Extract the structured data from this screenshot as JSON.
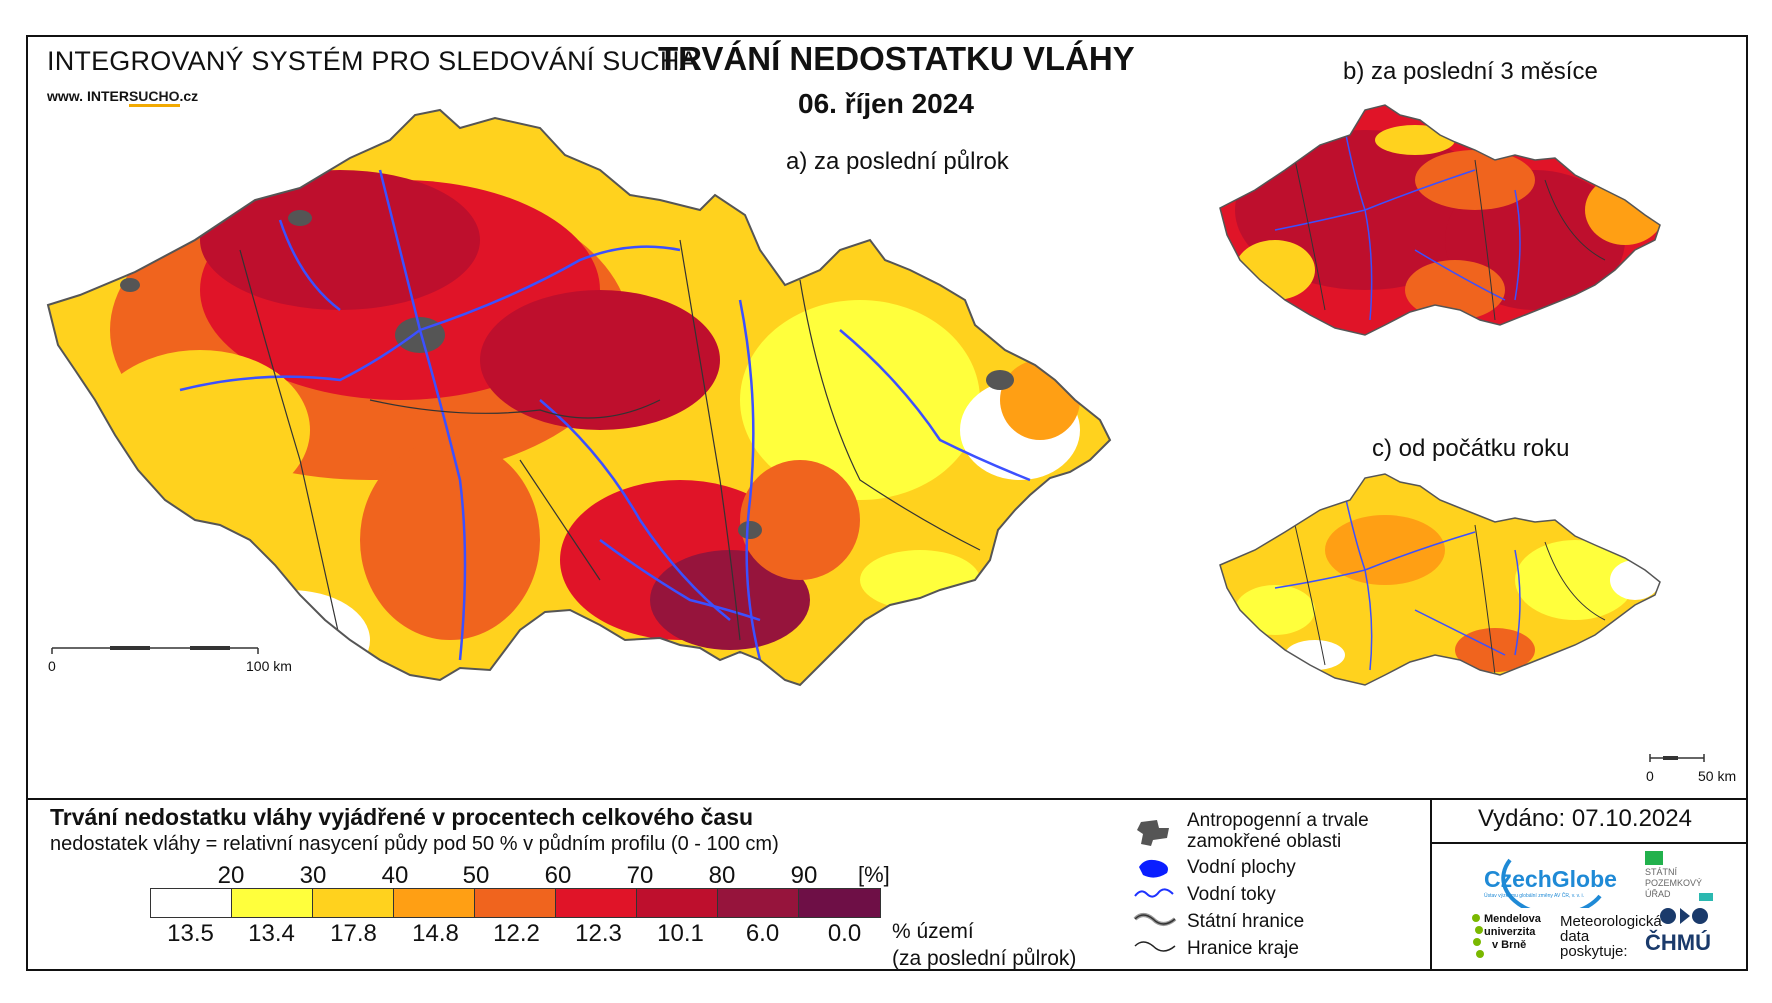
{
  "header": {
    "system_name": "INTEGROVANÝ SYSTÉM PRO SLEDOVÁNÍ SUCHA",
    "website_prefix": "www.",
    "website_name_a": "INTER",
    "website_name_b": "SUCHO",
    "website_suffix": ".cz",
    "title": "TRVÁNÍ NEDOSTATKU VLÁHY",
    "date": "06. říjen 2024"
  },
  "maps": {
    "a": {
      "caption": "a) za poslední půlrok",
      "scale_start": "0",
      "scale_end": "100 km"
    },
    "b": {
      "caption": "b) za poslední 3 měsíce"
    },
    "c": {
      "caption": "c) od počátku roku",
      "scale_start": "0",
      "scale_end": "50 km"
    }
  },
  "legend": {
    "title": "Trvání nedostatku vláhy vyjádřené v procentech celkového času",
    "subtitle": "nedostatek vláhy = relativní nasycení půdy pod 50 % v půdním profilu (0 - 100 cm)",
    "thresholds": [
      "20",
      "30",
      "40",
      "50",
      "60",
      "70",
      "80",
      "90"
    ],
    "unit": "[%]",
    "colors": [
      "#ffffff",
      "#ffff3c",
      "#ffd21e",
      "#ff9f14",
      "#f0641e",
      "#e01428",
      "#be0f2d",
      "#96143c",
      "#6e0f46"
    ],
    "percentages": [
      "13.5",
      "13.4",
      "17.8",
      "14.8",
      "12.2",
      "12.3",
      "10.1",
      "6.0",
      "0.0"
    ],
    "percent_label_1": "% území",
    "percent_label_2": "(za poslední půlrok)"
  },
  "symbols": {
    "anthropogenic_1": "Antropogenní a trvale",
    "anthropogenic_2": "zamokřené oblasti",
    "water_bodies": "Vodní plochy",
    "rivers": "Vodní toky",
    "state_border": "Státní hranice",
    "region_border": "Hranice kraje"
  },
  "footer": {
    "issued": "Vydáno: 07.10.2024",
    "czechglobe": "CzechGlobe",
    "czechglobe_sub": "Ústav výzkumu globální změny AV ČR, v. v. i.",
    "spu_1": "STÁTNÍ",
    "spu_2": "POZEMKOVÝ",
    "spu_3": "ÚŘAD",
    "mendel_1": "Mendelova",
    "mendel_2": "univerzita",
    "mendel_3": "v Brně",
    "meteo_1": "Meteorologická",
    "meteo_2": "data",
    "meteo_3": "poskytuje:",
    "chmu": "ČHMÚ"
  }
}
